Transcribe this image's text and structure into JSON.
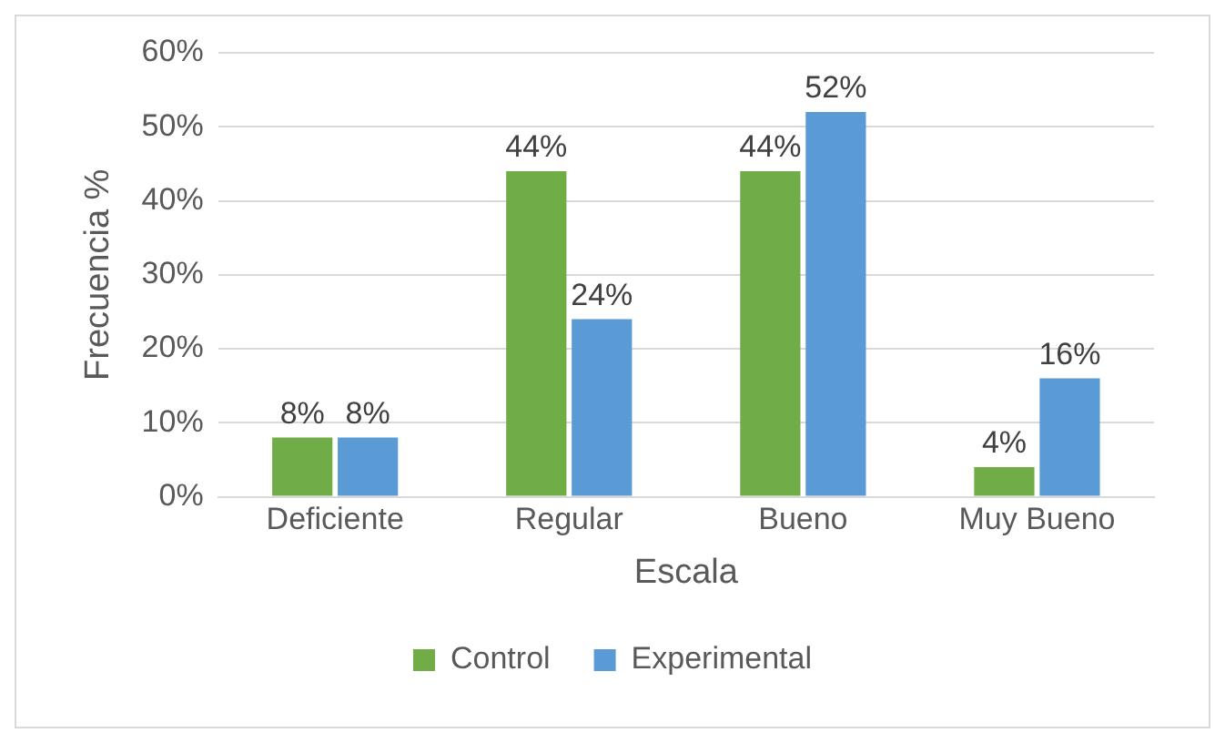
{
  "chart_data": {
    "type": "bar",
    "xlabel": "Escala",
    "ylabel": "Frecuencia %",
    "categories": [
      "Deficiente",
      "Regular",
      "Bueno",
      "Muy Bueno"
    ],
    "series": [
      {
        "name": "Control",
        "color": "#70ad47",
        "values": [
          8,
          44,
          44,
          4
        ],
        "value_labels": [
          "8%",
          "44%",
          "44%",
          "4%"
        ]
      },
      {
        "name": "Experimental",
        "color": "#5b9bd5",
        "values": [
          8,
          24,
          52,
          16
        ],
        "value_labels": [
          "8%",
          "24%",
          "52%",
          "16%"
        ]
      }
    ],
    "ylim": [
      0,
      60
    ],
    "yticks": [
      {
        "value": 0,
        "label": "0%"
      },
      {
        "value": 10,
        "label": "10%"
      },
      {
        "value": 20,
        "label": "20%"
      },
      {
        "value": 30,
        "label": "30%"
      },
      {
        "value": 40,
        "label": "40%"
      },
      {
        "value": 50,
        "label": "50%"
      },
      {
        "value": 60,
        "label": "60%"
      }
    ],
    "grid": "y",
    "legend": "bottom"
  }
}
